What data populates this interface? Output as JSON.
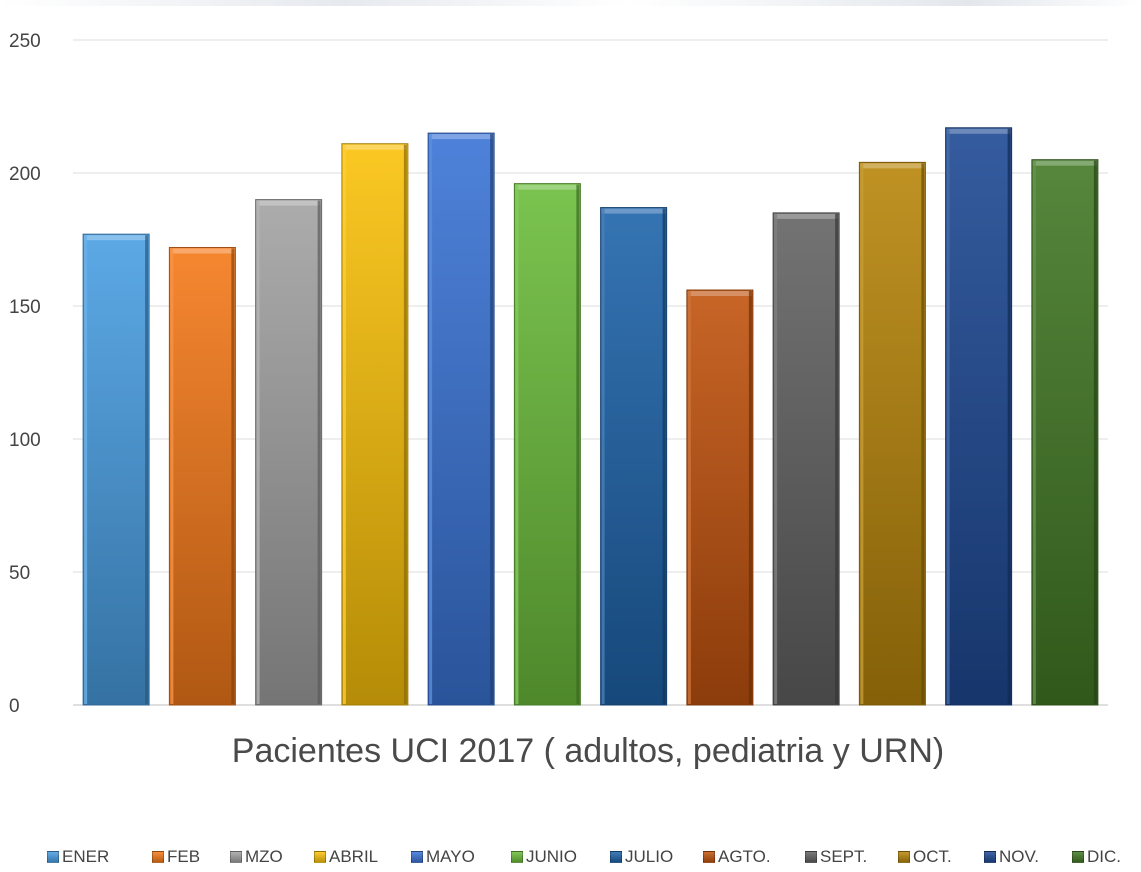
{
  "chart_data": {
    "type": "bar",
    "title": "Pacientes UCI 2017 ( adultos, pediatria y URN)",
    "xlabel": "",
    "ylabel": "",
    "ylim": [
      0,
      250
    ],
    "y_ticks": [
      "0",
      "50",
      "100",
      "150",
      "200",
      "250"
    ],
    "grid": true,
    "legend_position": "bottom",
    "categories": [
      "ENER",
      "FEB",
      "MZO",
      "ABRIL",
      "MAYO",
      "JUNIO",
      "JULIO",
      "AGTO.",
      "SEPT.",
      "OCT.",
      "NOV.",
      "DIC."
    ],
    "values": [
      177,
      172,
      190,
      211,
      215,
      196,
      187,
      156,
      185,
      204,
      217,
      205
    ],
    "colors": [
      "#4a9fe3",
      "#f57a1a",
      "#a3a3a3",
      "#fbc20a",
      "#3a74d6",
      "#6cbd3c",
      "#1e64aa",
      "#c2540f",
      "#636363",
      "#b8860b",
      "#1f4a94",
      "#437a26"
    ]
  }
}
